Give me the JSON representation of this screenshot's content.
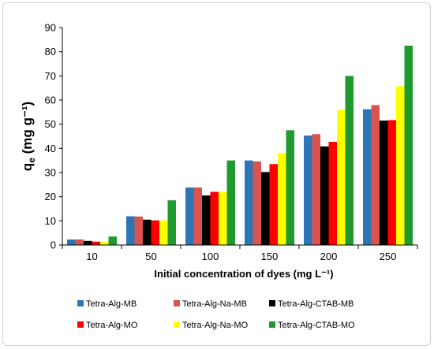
{
  "chart_data": {
    "type": "bar",
    "categories": [
      "10",
      "50",
      "100",
      "150",
      "200",
      "250"
    ],
    "series": [
      {
        "name": "Tetra-Alg-MB",
        "color": "#2E75B6",
        "values": [
          2.3,
          11.9,
          23.8,
          35.0,
          45.3,
          56.2
        ]
      },
      {
        "name": "Tetra-Alg-Na-MB",
        "color": "#D9534F",
        "values": [
          2.3,
          11.8,
          23.8,
          34.6,
          45.9,
          57.9
        ]
      },
      {
        "name": "Tetra-Alg-CTAB-MB",
        "color": "#000000",
        "values": [
          1.7,
          10.5,
          20.5,
          30.2,
          40.8,
          51.5
        ]
      },
      {
        "name": "Tetra-Alg-MO",
        "color": "#FF0000",
        "values": [
          1.4,
          10.2,
          22.0,
          33.5,
          42.7,
          51.7
        ]
      },
      {
        "name": "Tetra-Alg-Na-MO",
        "color": "#FFFF00",
        "values": [
          1.4,
          10.2,
          22.0,
          38.0,
          56.0,
          65.7
        ]
      },
      {
        "name": "Tetra-Alg-CTAB-MO",
        "color": "#1E9A2E",
        "values": [
          3.5,
          18.5,
          35.0,
          47.5,
          70.0,
          82.5
        ]
      }
    ],
    "xlabel": "Initial concentration of dyes (mg L⁻¹)",
    "ylabel": {
      "main": "q",
      "sub": "e",
      "unit": " (mg g⁻¹)"
    },
    "ylim": [
      0,
      90
    ],
    "yticks": [
      "0",
      "10",
      "20",
      "30",
      "40",
      "50",
      "60",
      "70",
      "80",
      "90"
    ],
    "grid": false,
    "legend_position": "bottom"
  }
}
